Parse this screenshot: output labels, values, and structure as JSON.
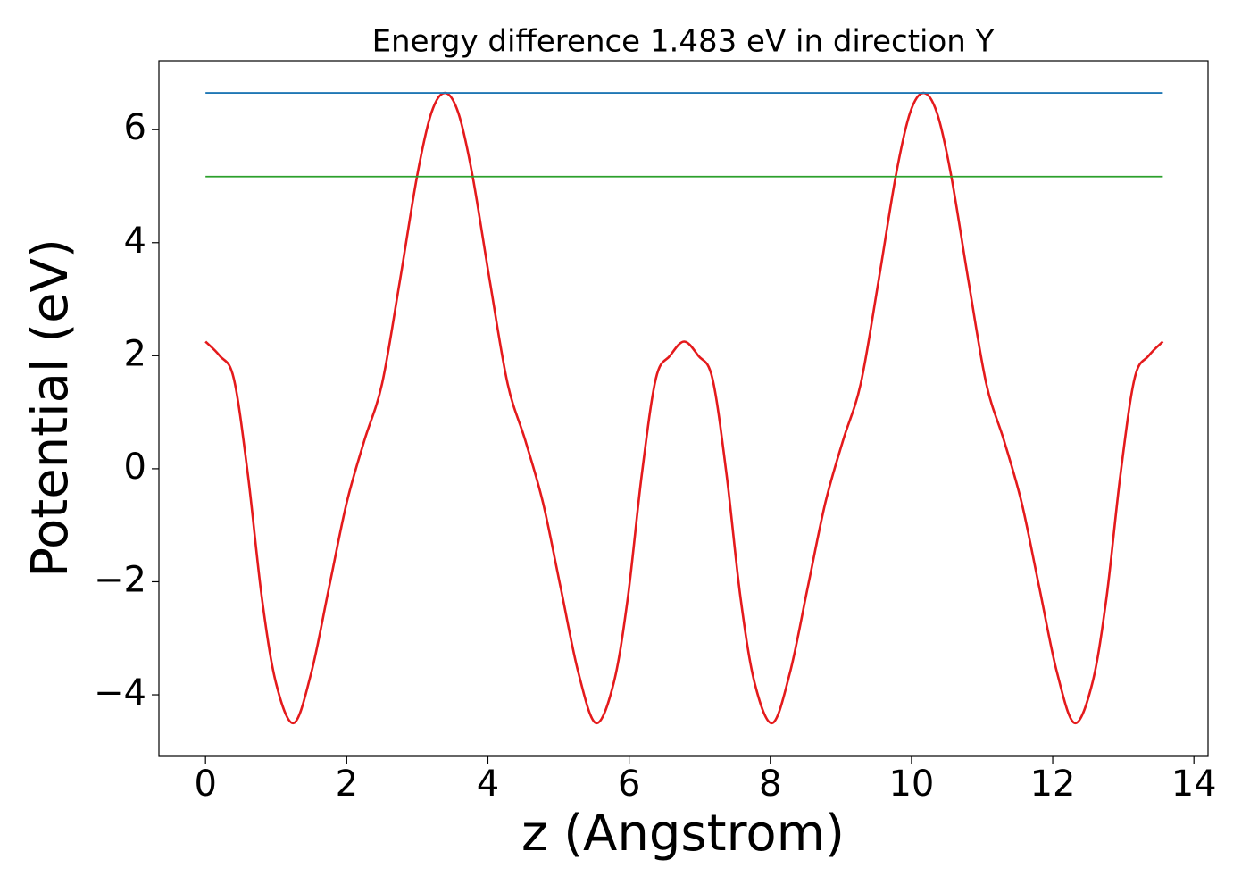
{
  "chart_data": {
    "type": "line",
    "title": "Energy difference 1.483 eV in direction Y",
    "xlabel": "z (Angstrom)",
    "ylabel": "Potential (eV)",
    "series": [
      {
        "color": "#e41a1c",
        "x": [
          0,
          0.2,
          0.4,
          0.6,
          0.8,
          1.0,
          1.25,
          1.5,
          1.75,
          2.0,
          2.25,
          2.5,
          2.75,
          3.0,
          3.2,
          3.39,
          3.58,
          3.78,
          4.03,
          4.28,
          4.53,
          4.78,
          5.03,
          5.28,
          5.53,
          5.78,
          5.98,
          6.18,
          6.38,
          6.58,
          6.78,
          6.98,
          7.18,
          7.38,
          7.58,
          7.78,
          8.03,
          8.28,
          8.53,
          8.78,
          9.03,
          9.28,
          9.53,
          9.78,
          9.98,
          10.17,
          10.36,
          10.56,
          10.81,
          11.06,
          11.31,
          11.56,
          11.81,
          12.06,
          12.31,
          12.56,
          12.76,
          12.96,
          13.16,
          13.36,
          13.56
        ],
        "values": [
          2.25,
          2.0,
          1.6,
          -0.1,
          -2.3,
          -3.8,
          -4.5,
          -3.6,
          -2.1,
          -0.6,
          0.5,
          1.5,
          3.3,
          5.2,
          6.3,
          6.65,
          6.3,
          5.2,
          3.3,
          1.5,
          0.5,
          -0.6,
          -2.1,
          -3.6,
          -4.5,
          -3.8,
          -2.3,
          -0.1,
          1.6,
          2.0,
          2.25,
          2.0,
          1.6,
          -0.1,
          -2.3,
          -3.8,
          -4.5,
          -3.6,
          -2.1,
          -0.6,
          0.5,
          1.5,
          3.3,
          5.2,
          6.3,
          6.65,
          6.3,
          5.2,
          3.3,
          1.5,
          0.5,
          -0.6,
          -2.1,
          -3.6,
          -4.5,
          -3.8,
          -2.3,
          -0.1,
          1.6,
          2.0,
          2.25
        ]
      },
      {
        "color": "#1f77b4",
        "x": [
          0,
          13.56
        ],
        "values": [
          6.65,
          6.65
        ]
      },
      {
        "color": "#2ca02c",
        "x": [
          0,
          13.56
        ],
        "values": [
          5.17,
          5.17
        ]
      }
    ],
    "xlim": [
      -0.66,
      14.2
    ],
    "xticks": [
      0,
      2,
      4,
      6,
      8,
      10,
      12,
      14
    ],
    "ylim": [
      -5.09,
      7.22
    ],
    "yticks": [
      {
        "value": -4,
        "label": "−4"
      },
      {
        "value": -2,
        "label": "−2"
      },
      0,
      2,
      4,
      6
    ],
    "grid": false
  }
}
